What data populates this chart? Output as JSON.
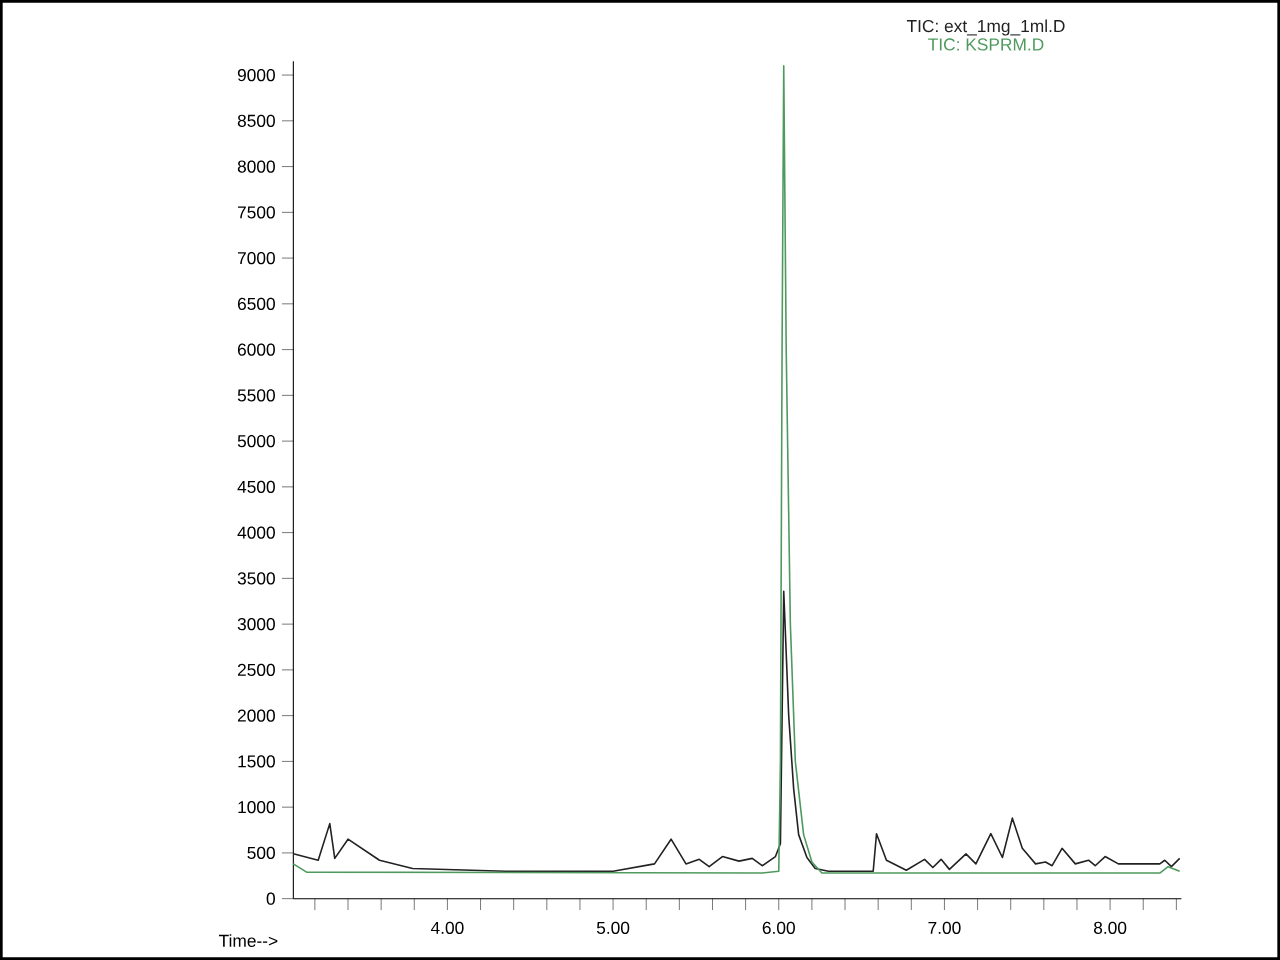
{
  "chart_data": {
    "type": "line",
    "xlabel": "Time-->",
    "xlim": [
      3.07,
      8.43
    ],
    "ylim": [
      0,
      9150
    ],
    "xticks": [
      {
        "value": 3.2,
        "label": null
      },
      {
        "value": 3.4,
        "label": null
      },
      {
        "value": 3.6,
        "label": null
      },
      {
        "value": 3.8,
        "label": null
      },
      {
        "value": 4,
        "label": "4.00"
      },
      {
        "value": 4.2,
        "label": null
      },
      {
        "value": 4.4,
        "label": null
      },
      {
        "value": 4.6,
        "label": null
      },
      {
        "value": 4.8,
        "label": null
      },
      {
        "value": 5,
        "label": "5.00"
      },
      {
        "value": 5.2,
        "label": null
      },
      {
        "value": 5.4,
        "label": null
      },
      {
        "value": 5.6,
        "label": null
      },
      {
        "value": 5.8,
        "label": null
      },
      {
        "value": 6,
        "label": "6.00"
      },
      {
        "value": 6.2,
        "label": null
      },
      {
        "value": 6.4,
        "label": null
      },
      {
        "value": 6.6,
        "label": null
      },
      {
        "value": 6.8,
        "label": null
      },
      {
        "value": 7,
        "label": "7.00"
      },
      {
        "value": 7.2,
        "label": null
      },
      {
        "value": 7.4,
        "label": null
      },
      {
        "value": 7.6,
        "label": null
      },
      {
        "value": 7.8,
        "label": null
      },
      {
        "value": 8,
        "label": "8.00"
      },
      {
        "value": 8.2,
        "label": null
      },
      {
        "value": 8.4,
        "label": null
      }
    ],
    "yticks": [
      0,
      500,
      1000,
      1500,
      2000,
      2500,
      3000,
      3500,
      4000,
      4500,
      5000,
      5500,
      6000,
      6500,
      7000,
      7500,
      8000,
      8500,
      9000
    ],
    "grid": false,
    "legend": "top right",
    "marker": "none",
    "line_style": "solid",
    "series": [
      {
        "name": "TIC: ext_1mg_1ml.D",
        "color": "#222222",
        "x": [
          3.07,
          3.22,
          3.29,
          3.32,
          3.4,
          3.59,
          3.79,
          4.35,
          5.0,
          5.25,
          5.35,
          5.44,
          5.52,
          5.58,
          5.66,
          5.76,
          5.84,
          5.9,
          5.98,
          6.01,
          6.03,
          6.06,
          6.09,
          6.12,
          6.17,
          6.22,
          6.3,
          6.57,
          6.59,
          6.65,
          6.77,
          6.88,
          6.93,
          6.98,
          7.03,
          7.13,
          7.19,
          7.28,
          7.35,
          7.41,
          7.47,
          7.55,
          7.61,
          7.65,
          7.71,
          7.79,
          7.87,
          7.91,
          7.97,
          8.05,
          8.3,
          8.33,
          8.37,
          8.42
        ],
        "values": [
          490,
          420,
          820,
          440,
          650,
          420,
          330,
          300,
          300,
          380,
          650,
          380,
          430,
          350,
          460,
          410,
          440,
          360,
          460,
          600,
          3360,
          2000,
          1200,
          700,
          450,
          330,
          300,
          300,
          710,
          420,
          310,
          430,
          340,
          430,
          320,
          490,
          380,
          710,
          450,
          880,
          550,
          380,
          400,
          360,
          550,
          380,
          420,
          360,
          460,
          380,
          380,
          420,
          350,
          440
        ]
      },
      {
        "name": "TIC: KSPRM.D",
        "color": "#4e9a5e",
        "x": [
          3.07,
          3.15,
          5.9,
          6.0,
          6.01,
          6.02,
          6.03,
          6.045,
          6.07,
          6.1,
          6.15,
          6.2,
          6.26,
          8.3,
          8.35,
          8.42
        ],
        "values": [
          380,
          290,
          280,
          300,
          1500,
          6000,
          9100,
          6000,
          3000,
          1500,
          700,
          400,
          280,
          280,
          350,
          300
        ]
      }
    ]
  }
}
